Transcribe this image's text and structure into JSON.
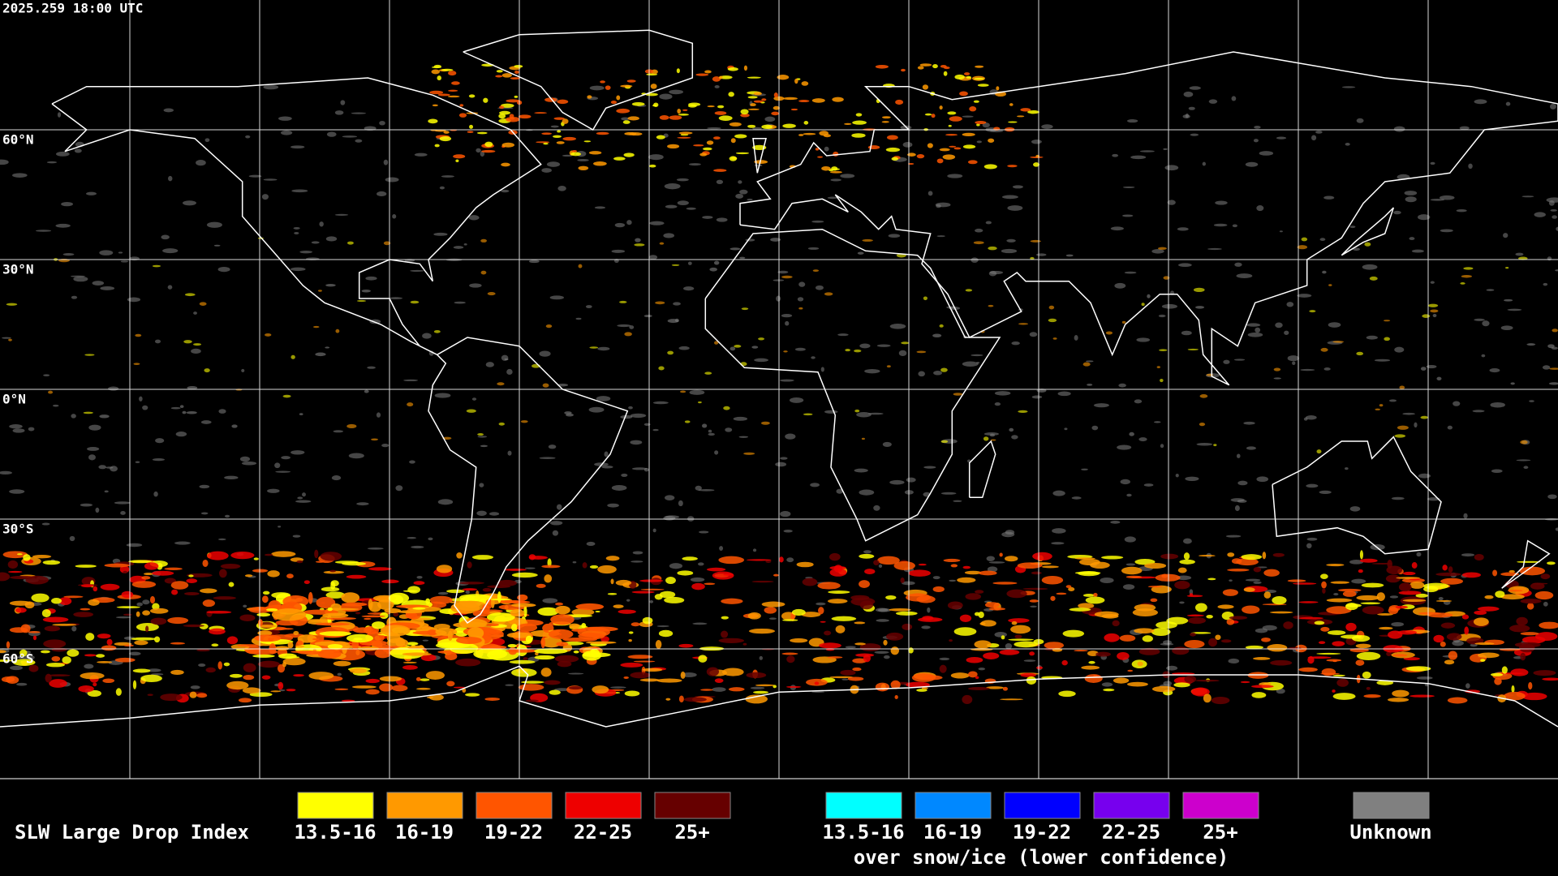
{
  "header": {
    "timestamp": "2025.259 18:00 UTC"
  },
  "map": {
    "latitude_labels": [
      "60°N",
      "30°N",
      "0°N",
      "30°S",
      "60°S"
    ]
  },
  "legend": {
    "title": "SLW Large Drop Index",
    "groups": [
      {
        "items": [
          {
            "label": "13.5-16",
            "color": "#ffff00"
          },
          {
            "label": "16-19",
            "color": "#ff9900"
          },
          {
            "label": "19-22",
            "color": "#ff5500"
          },
          {
            "label": "22-25",
            "color": "#ee0000"
          },
          {
            "label": "25+",
            "color": "#660000"
          }
        ]
      },
      {
        "caption": "over snow/ice (lower confidence)",
        "items": [
          {
            "label": "13.5-16",
            "color": "#00ffff"
          },
          {
            "label": "16-19",
            "color": "#0088ff"
          },
          {
            "label": "19-22",
            "color": "#0000ff"
          },
          {
            "label": "22-25",
            "color": "#7700ee"
          },
          {
            "label": "25+",
            "color": "#cc00cc"
          }
        ]
      }
    ],
    "unknown": {
      "label": "Unknown",
      "color": "#808080"
    }
  }
}
